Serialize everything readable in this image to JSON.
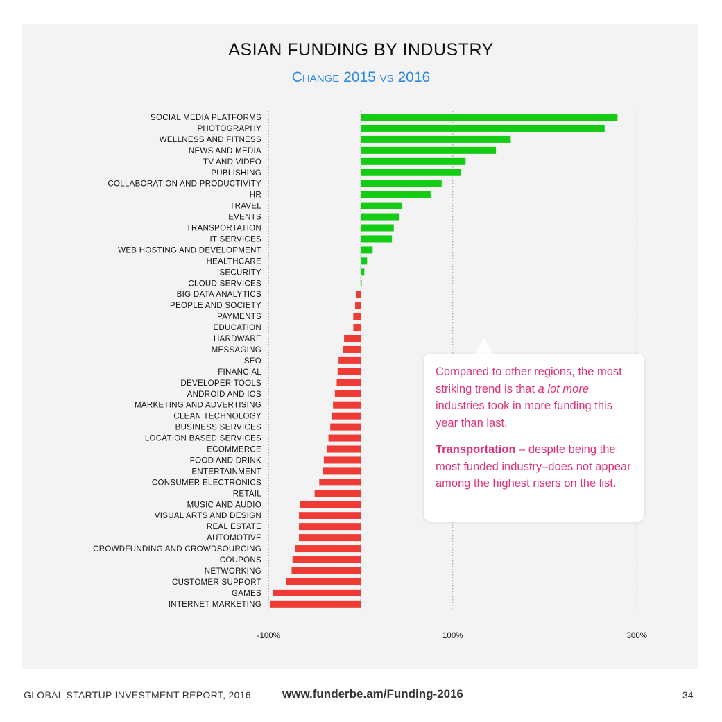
{
  "page": {
    "title": "ASIAN FUNDING BY INDUSTRY",
    "subtitle": "Change 2015 vs 2016"
  },
  "callout": {
    "p1_a": "Compared to other regions, the most striking trend is that ",
    "p1_em": "a lot more",
    "p1_b": " industries took in more funding this year than last.",
    "p2_strong": "Transportation",
    "p2_rest": " – despite being the most funded industry–does not appear among the highest risers on the list."
  },
  "footer": {
    "report": "GLOBAL STARTUP INVESTMENT REPORT, 2016",
    "url": "www.funderbe.am/Funding-2016",
    "page_number": "34"
  },
  "colors": {
    "positive": "#13cc13",
    "negative": "#ee3b35",
    "accent_blue": "#2a8ae0",
    "callout_text": "#e0307a"
  },
  "chart_data": {
    "type": "bar",
    "orientation": "horizontal",
    "title": "ASIAN FUNDING BY INDUSTRY",
    "subtitle": "Change 2015 vs 2016",
    "xlabel": "",
    "ylabel": "",
    "unit": "%",
    "xlim": [
      -100,
      300
    ],
    "gridlines": [
      -100,
      0,
      100,
      300
    ],
    "ticks": [
      {
        "value": -100,
        "label": "-100%"
      },
      {
        "value": 100,
        "label": "100%"
      },
      {
        "value": 300,
        "label": "300%"
      }
    ],
    "categories": [
      "SOCIAL MEDIA PLATFORMS",
      "PHOTOGRAPHY",
      "WELLNESS AND FITNESS",
      "NEWS AND MEDIA",
      "TV AND VIDEO",
      "PUBLISHING",
      "COLLABORATION AND PRODUCTIVITY",
      "HR",
      "TRAVEL",
      "EVENTS",
      "TRANSPORTATION",
      "IT SERVICES",
      "WEB HOSTING AND DEVELOPMENT",
      "HEALTHCARE",
      "SECURITY",
      "CLOUD SERVICES",
      "BIG DATA ANALYTICS",
      "PEOPLE AND SOCIETY",
      "PAYMENTS",
      "EDUCATION",
      "HARDWARE",
      "MESSAGING",
      "SEO",
      "FINANCIAL",
      "DEVELOPER TOOLS",
      "ANDROID AND IOS",
      "MARKETING AND ADVERTISING",
      "CLEAN TECHNOLOGY",
      "BUSINESS SERVICES",
      "LOCATION BASED SERVICES",
      "ECOMMERCE",
      "FOOD AND DRINK",
      "ENTERTAINMENT",
      "CONSUMER ELECTRONICS",
      "RETAIL",
      "MUSIC AND AUDIO",
      "VISUAL ARTS AND DESIGN",
      "REAL ESTATE",
      "AUTOMOTIVE",
      "CROWDFUNDING AND CROWDSOURCING",
      "COUPONS",
      "NETWORKING",
      "CUSTOMER SUPPORT",
      "GAMES",
      "INTERNET MARKETING"
    ],
    "values": [
      279,
      265,
      163,
      147,
      114,
      109,
      88,
      76,
      45,
      42,
      36,
      34,
      13,
      7,
      4,
      1,
      -5,
      -6,
      -8,
      -8,
      -18,
      -19,
      -24,
      -25,
      -26,
      -28,
      -30,
      -31,
      -33,
      -35,
      -37,
      -40,
      -41,
      -45,
      -50,
      -66,
      -67,
      -67,
      -67,
      -71,
      -74,
      -75,
      -81,
      -95,
      -98
    ]
  }
}
